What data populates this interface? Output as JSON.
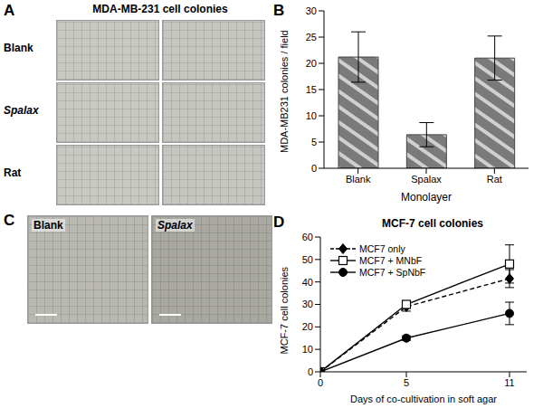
{
  "panels": [
    {
      "panel": "A",
      "title": "MDA-MB-231 cell colonies",
      "rows": [
        "Blank",
        "Spalax",
        "Rat"
      ]
    },
    {
      "panel": "C",
      "images": [
        "Blank",
        "Spalax"
      ]
    }
  ],
  "chart_data": [
    {
      "panel": "B",
      "type": "bar",
      "categories": [
        "Blank",
        "Spalax",
        "Rat"
      ],
      "values": [
        21.2,
        6.4,
        21.0
      ],
      "errors": [
        4.8,
        2.3,
        4.2
      ],
      "color": "#7a7a7a",
      "xlabel": "Monolayer",
      "ylabel": "MDA-MB231 colonies / field",
      "ylim": [
        0,
        30
      ],
      "yticks": [
        0,
        5,
        10,
        15,
        20,
        25,
        30
      ]
    },
    {
      "panel": "D",
      "type": "line",
      "title": "MCF-7 cell colonies",
      "xlabel": "Days of co-cultivation in soft agar",
      "ylabel": "MCF-7 cell colonies",
      "x": [
        0,
        5,
        11
      ],
      "xlim": [
        0,
        12
      ],
      "xticks": [
        0,
        5,
        11
      ],
      "ylim": [
        0,
        60
      ],
      "yticks": [
        0,
        10,
        20,
        30,
        40,
        50,
        60
      ],
      "legend": "upper left",
      "series": [
        {
          "name": "MCF7 only",
          "color": "#000000",
          "values": [
            0,
            29,
            41.5
          ],
          "errors": [
            0,
            2,
            4
          ],
          "marker": "diamond",
          "line_style": "dashed"
        },
        {
          "name": "MCF7 + MNbF",
          "color": "#000000",
          "values": [
            0,
            30,
            48
          ],
          "errors": [
            0,
            1.5,
            8.5
          ],
          "marker": "square_open",
          "line_style": "solid"
        },
        {
          "name": "MCF7 + SpNbF",
          "color": "#000000",
          "values": [
            0,
            15,
            26
          ],
          "errors": [
            0,
            1,
            5
          ],
          "marker": "circle",
          "line_style": "solid"
        }
      ]
    }
  ]
}
